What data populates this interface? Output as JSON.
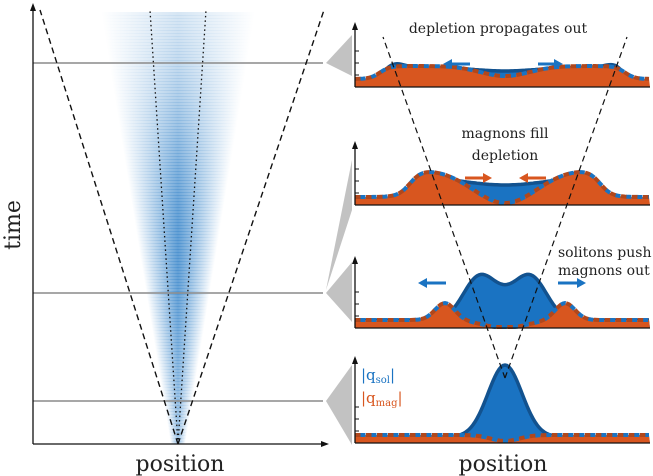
{
  "left_panel": {
    "y_axis_label": "time",
    "x_axis_label": "position",
    "time_slices": 3
  },
  "right_panels": {
    "x_axis_label": "position",
    "panels": [
      {
        "annotation": [
          "depletion propagates out"
        ]
      },
      {
        "annotation": [
          "magnons fill",
          "depletion"
        ]
      },
      {
        "annotation": [
          "solitons push",
          "magnons out"
        ]
      },
      {
        "annotation": []
      }
    ]
  },
  "legend": {
    "sol": {
      "text": "|q",
      "sub": "sol",
      "tail": "|"
    },
    "mag": {
      "text": "|q",
      "sub": "mag",
      "tail": "|"
    }
  },
  "colors": {
    "soliton_blue": "#1a73c2",
    "soliton_dark": "#12528f",
    "magnon_orange": "#d8561f",
    "guide_gray": "#888888",
    "slice_gray": "#8a8a8a"
  }
}
